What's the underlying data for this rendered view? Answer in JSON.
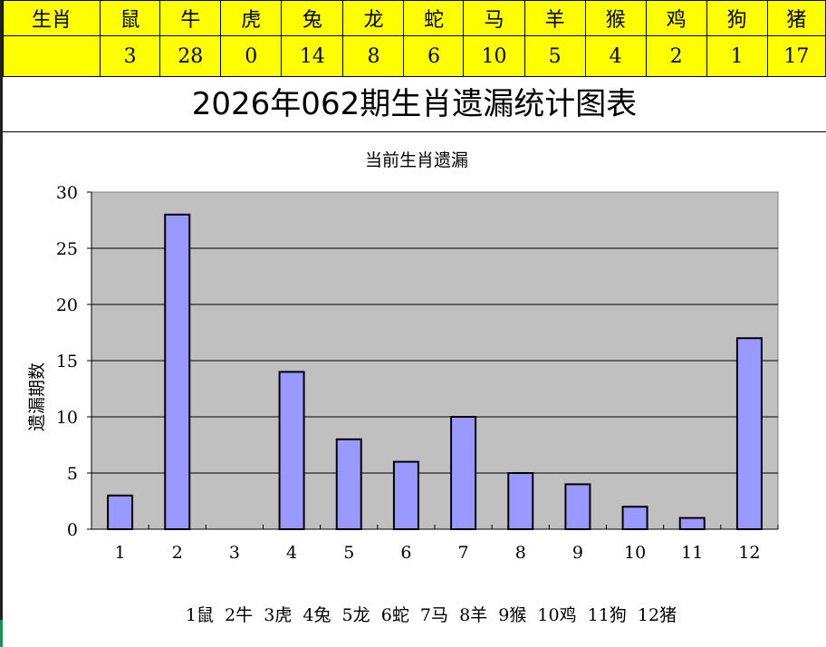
{
  "table": {
    "header_label": "生肖",
    "zodiacs": [
      "鼠",
      "牛",
      "虎",
      "兔",
      "龙",
      "蛇",
      "马",
      "羊",
      "猴",
      "鸡",
      "狗",
      "猪"
    ],
    "values": [
      "3",
      "28",
      "0",
      "14",
      "8",
      "6",
      "10",
      "5",
      "4",
      "2",
      "1",
      "17"
    ]
  },
  "page_title": "2026年062期生肖遗漏统计图表",
  "chart_data": {
    "type": "bar",
    "title": "当前生肖遗漏",
    "ylabel": "遗漏期数",
    "xlabel": "",
    "categories": [
      "1",
      "2",
      "3",
      "4",
      "5",
      "6",
      "7",
      "8",
      "9",
      "10",
      "11",
      "12"
    ],
    "values": [
      3,
      28,
      0,
      14,
      8,
      6,
      10,
      5,
      4,
      2,
      1,
      17
    ],
    "ylim": [
      0,
      30
    ],
    "yticks": [
      "0",
      "5",
      "10",
      "15",
      "20",
      "25",
      "30"
    ],
    "grid": true,
    "legend_text": "1鼠  2牛  3虎  4兔  5龙  6蛇  7马  8羊  9猴  10鸡  11狗  12猪",
    "colors": {
      "bar": "#9999ff",
      "plot_bg": "#c0c0c0",
      "header_bg": "#ffff00"
    }
  }
}
